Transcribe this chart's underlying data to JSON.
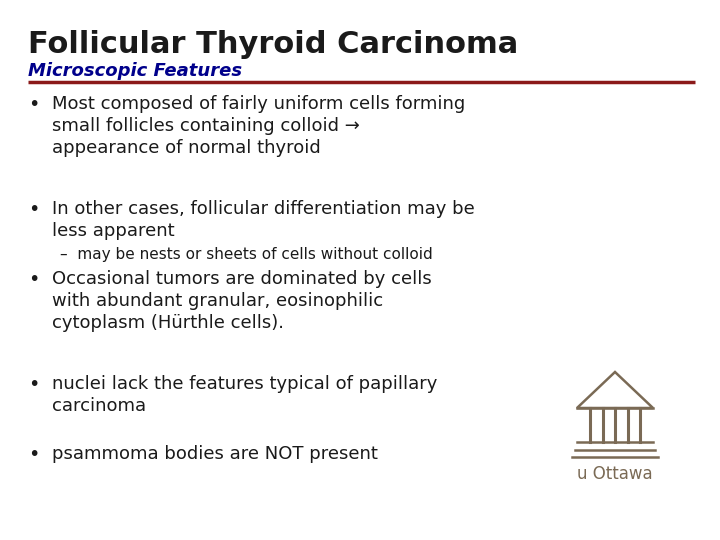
{
  "title": "Follicular Thyroid Carcinoma",
  "subtitle": "Microscopic Features",
  "title_color": "#1a1a1a",
  "subtitle_color": "#00008B",
  "divider_color": "#8B1A1A",
  "bg_color": "#ffffff",
  "bullet_color": "#1a1a1a",
  "bullet_points_1": [
    "Most composed of fairly uniform cells forming\nsmall follicles containing colloid →\nappearance of normal thyroid",
    "In other cases, follicular differentiation may be\nless apparent"
  ],
  "sub_bullet": "–  may be nests or sheets of cells without colloid",
  "bullet_points_2": [
    "Occasional tumors are dominated by cells\nwith abundant granular, eosinophilic\ncytoplasm (Hürthle cells).",
    "nuclei lack the features typical of papillary\ncarcinoma",
    "psammoma bodies are NOT present"
  ],
  "logo_color": "#7a6a55",
  "logo_text": "u Ottawa",
  "title_fontsize": 22,
  "subtitle_fontsize": 13,
  "bullet_fontsize": 13,
  "sub_bullet_fontsize": 11,
  "logo_fontsize": 12
}
